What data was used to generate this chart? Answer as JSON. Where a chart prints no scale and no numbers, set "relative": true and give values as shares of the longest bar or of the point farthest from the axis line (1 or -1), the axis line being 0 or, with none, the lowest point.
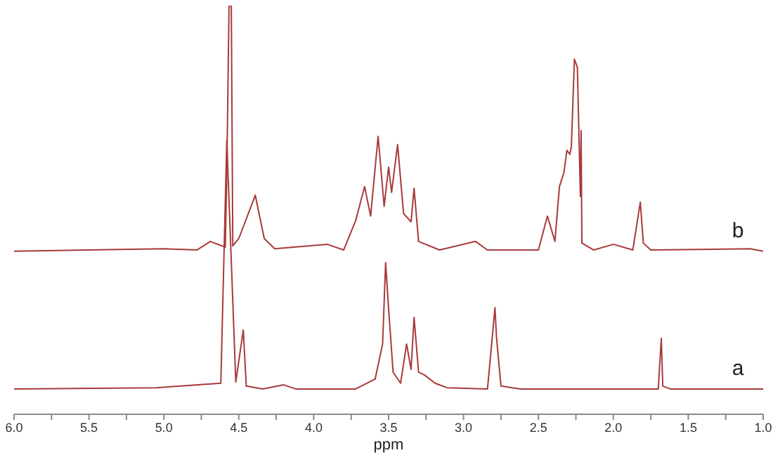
{
  "chart_data": {
    "type": "line",
    "relative": true,
    "xlabel": "ppm",
    "xlim": [
      6.0,
      1.0
    ],
    "xticks": [
      {
        "value": 6.0,
        "label": "6.0"
      },
      {
        "value": 5.75,
        "label": null
      },
      {
        "value": 5.5,
        "label": "5.5"
      },
      {
        "value": 5.25,
        "label": null
      },
      {
        "value": 5.0,
        "label": "5.0"
      },
      {
        "value": 4.75,
        "label": null
      },
      {
        "value": 4.5,
        "label": "4.5"
      },
      {
        "value": 4.25,
        "label": null
      },
      {
        "value": 4.0,
        "label": "4.0"
      },
      {
        "value": 3.75,
        "label": null
      },
      {
        "value": 3.5,
        "label": "3.5"
      },
      {
        "value": 3.25,
        "label": null
      },
      {
        "value": 3.0,
        "label": "3.0"
      },
      {
        "value": 2.75,
        "label": null
      },
      {
        "value": 2.5,
        "label": "2.5"
      },
      {
        "value": 2.25,
        "label": null
      },
      {
        "value": 2.0,
        "label": "2.0"
      },
      {
        "value": 1.75,
        "label": null
      },
      {
        "value": 1.5,
        "label": "1.5"
      },
      {
        "value": 1.25,
        "label": null
      },
      {
        "value": 1.0,
        "label": "1.0"
      }
    ],
    "grid": false,
    "legend": false,
    "marker": "none",
    "line_style": "solid",
    "tick_labels": "x",
    "series": [
      {
        "name": "b",
        "color": "#a83a3a",
        "x": [
          6.0,
          5.0,
          4.78,
          4.69,
          4.59,
          4.58,
          4.565,
          4.55,
          4.54,
          4.5,
          4.39,
          4.33,
          4.26,
          3.91,
          3.8,
          3.72,
          3.66,
          3.62,
          3.57,
          3.53,
          3.5,
          3.48,
          3.44,
          3.4,
          3.35,
          3.33,
          3.3,
          3.16,
          2.92,
          2.84,
          2.5,
          2.44,
          2.39,
          2.36,
          2.33,
          2.31,
          2.29,
          2.28,
          2.26,
          2.24,
          2.22,
          2.215,
          2.21,
          2.13,
          2.0,
          1.87,
          1.82,
          1.8,
          1.75,
          1.09,
          1.0
        ],
        "values": [
          0.399,
          0.405,
          0.402,
          0.423,
          0.409,
          0.595,
          1.0,
          1.0,
          0.412,
          0.43,
          0.536,
          0.43,
          0.405,
          0.416,
          0.402,
          0.474,
          0.557,
          0.485,
          0.68,
          0.509,
          0.605,
          0.543,
          0.66,
          0.491,
          0.471,
          0.553,
          0.423,
          0.402,
          0.423,
          0.402,
          0.402,
          0.485,
          0.423,
          0.557,
          0.591,
          0.646,
          0.636,
          0.656,
          0.869,
          0.849,
          0.533,
          0.694,
          0.419,
          0.402,
          0.416,
          0.402,
          0.519,
          0.419,
          0.402,
          0.405,
          0.399
        ]
      },
      {
        "name": "a",
        "color": "#a83a3a",
        "x": [
          6.0,
          5.05,
          4.62,
          4.58,
          4.52,
          4.47,
          4.45,
          4.34,
          4.2,
          4.12,
          3.72,
          3.59,
          3.54,
          3.52,
          3.5,
          3.47,
          3.42,
          3.38,
          3.35,
          3.33,
          3.3,
          3.26,
          3.19,
          3.11,
          2.84,
          2.79,
          2.78,
          2.75,
          2.62,
          1.7,
          1.68,
          1.67,
          1.62,
          1.0
        ],
        "values": [
          0.062,
          0.065,
          0.076,
          0.67,
          0.079,
          0.206,
          0.069,
          0.062,
          0.072,
          0.062,
          0.062,
          0.086,
          0.172,
          0.371,
          0.258,
          0.103,
          0.076,
          0.172,
          0.11,
          0.237,
          0.103,
          0.096,
          0.076,
          0.065,
          0.062,
          0.261,
          0.189,
          0.069,
          0.062,
          0.062,
          0.186,
          0.069,
          0.062,
          0.062
        ]
      }
    ]
  }
}
